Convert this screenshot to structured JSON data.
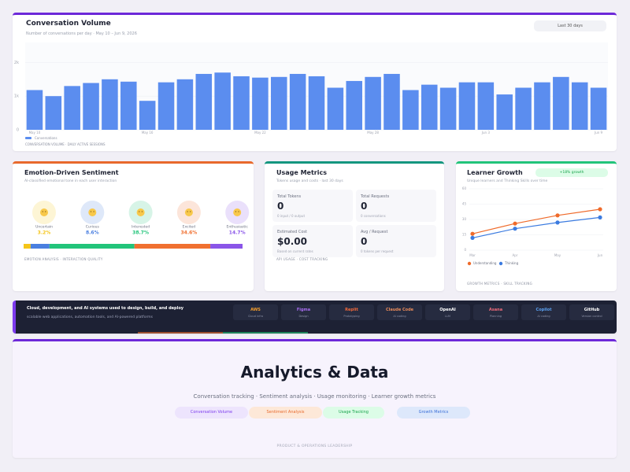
{
  "conversation_volume": {
    "title": "Conversation Volume",
    "subtitle": "Number of conversations per day · May 10 – Jun 9, 2026",
    "range_button": "Last 30 days",
    "legend": "Conversations",
    "footer": "CONVERSATION VOLUME · DAILY ACTIVE SESSIONS",
    "chart": {
      "type": "bar",
      "color": "#5b8def",
      "categories": [
        "May 10",
        null,
        null,
        null,
        null,
        null,
        "May 16",
        null,
        null,
        null,
        null,
        null,
        "May 22",
        null,
        null,
        null,
        null,
        null,
        "May 28",
        null,
        null,
        null,
        null,
        null,
        "Jun 3",
        null,
        null,
        null,
        null,
        null,
        "Jun 9"
      ],
      "values": [
        1180,
        1000,
        1300,
        1390,
        1500,
        1430,
        860,
        1410,
        1500,
        1660,
        1700,
        1590,
        1550,
        1570,
        1660,
        1590,
        1250,
        1450,
        1570,
        1660,
        1180,
        1340,
        1250,
        1410,
        1410,
        1050,
        1250,
        1410,
        1570,
        1410,
        1250
      ],
      "ylim": [
        0,
        2500
      ],
      "yticks": [
        0,
        {
          "value": 1000,
          "label": "1k"
        },
        {
          "value": 2000,
          "label": "2k"
        }
      ],
      "grid": true
    }
  },
  "sentiment": {
    "title": "Emotion-Driven Sentiment",
    "subtitle": "AI-classified emotional tone in each user interaction",
    "categories": [
      "Uncertain",
      "Curious",
      "Interested",
      "Excited",
      "Enthusiastic"
    ],
    "values": [
      3.2,
      8.6,
      38.7,
      34.6,
      14.7
    ],
    "value_labels": [
      "3.2%",
      "8.6%",
      "38.7%",
      "34.6%",
      "14.7%"
    ],
    "colors": [
      "#f5c518",
      "#4a7fe0",
      "#22c47a",
      "#f07030",
      "#8a55e8"
    ],
    "footer": "EMOTION ANALYSIS · INTERACTION QUALITY"
  },
  "usage": {
    "title": "Usage Metrics",
    "subtitle": "Tokens usage and costs · last 30 days",
    "cards": [
      {
        "label": "Total Tokens",
        "value": 0,
        "sub": "0 input / 0 output"
      },
      {
        "label": "Total Requests",
        "value": 0,
        "sub": "0 conversations"
      },
      {
        "label": "Estimated Cost",
        "value": "$0.00",
        "sub": "Based on current rates"
      },
      {
        "label": "Avg / Request",
        "value": 0,
        "sub": "0 tokens per request"
      }
    ],
    "footer": "API USAGE · COST TRACKING"
  },
  "growth": {
    "title": "Learner Growth",
    "badge": "+18% growth",
    "subtitle": "Unique learners and Thinking Skills over time",
    "footer": "GROWTH METRICS · SKILL TRACKING",
    "chart": {
      "type": "line",
      "categories": [
        "Mar",
        "Apr",
        "May",
        "Jun"
      ],
      "series": [
        {
          "name": "Understanding",
          "color": "#ef6a2a",
          "values": [
            16,
            26,
            34,
            40
          ]
        },
        {
          "name": "Thinking",
          "color": "#3b7be0",
          "values": [
            12,
            21,
            27,
            32
          ]
        }
      ],
      "ylim": [
        0,
        60
      ],
      "yticks": [
        0,
        15,
        30,
        45,
        60
      ],
      "grid": true
    }
  },
  "banner": {
    "title": "Cloud, development, and AI systems used to design, build, and deploy",
    "subtitle": "scalable web applications, automation tools, and AI-powered platforms",
    "tools": [
      {
        "name": "AWS",
        "desc": "Cloud infra",
        "color": "#f59e2b"
      },
      {
        "name": "Figma",
        "desc": "Design",
        "color": "#a66cf0"
      },
      {
        "name": "Replit",
        "desc": "Prototyping",
        "color": "#f2683a"
      },
      {
        "name": "Claude Code",
        "desc": "AI coding",
        "color": "#e88a5a"
      },
      {
        "name": "OpenAI",
        "desc": "LLM",
        "color": "#ffffff"
      },
      {
        "name": "Asana",
        "desc": "Planning",
        "color": "#f06a7a"
      },
      {
        "name": "Copilot",
        "desc": "AI coding",
        "color": "#5aa0f0"
      },
      {
        "name": "GitHub",
        "desc": "Version control",
        "color": "#ffffff"
      }
    ]
  },
  "hero": {
    "title": "Analytics & Data",
    "subtitle": "Conversation tracking · Sentiment analysis · Usage monitoring · Learner growth metrics",
    "pills": [
      "Conversation Volume",
      "Sentiment Analysis",
      "Usage Tracking",
      "Growth Metrics"
    ],
    "footer": "PRODUCT & OPERATIONS LEADERSHIP"
  }
}
